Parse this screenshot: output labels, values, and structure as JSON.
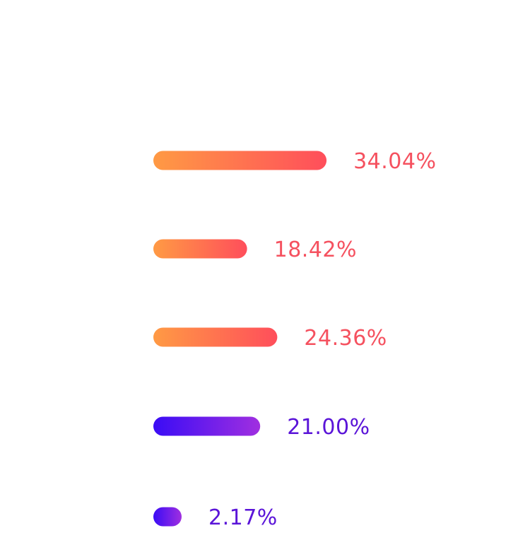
{
  "chart_data": {
    "type": "bar",
    "orientation": "horizontal",
    "title": "",
    "xlabel": "",
    "ylabel": "",
    "grid": false,
    "legend": "none",
    "values": [
      34.04,
      18.42,
      24.36,
      21.0,
      2.17
    ],
    "labels": [
      "34.04%",
      "18.42%",
      "24.36%",
      "21.00%",
      "2.17%"
    ],
    "colors": {
      "warm_start": "#FF9A44",
      "warm_end": "#FF4E5B",
      "warm_label": "#F5515F",
      "cool_start": "#3A0CF5",
      "cool_end": "#A02FE0",
      "cool_label": "#5A14D8"
    },
    "bar_color_groups": [
      "warm",
      "warm",
      "warm",
      "cool",
      "cool"
    ]
  }
}
